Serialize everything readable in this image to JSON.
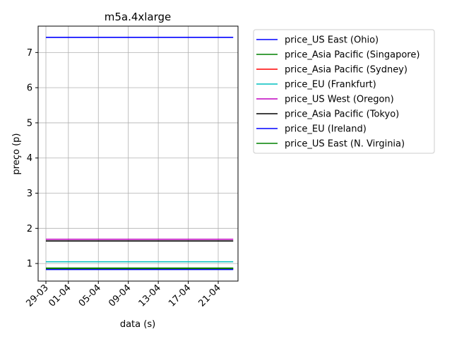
{
  "chart_data": {
    "type": "line",
    "title": "m5a.4xlarge",
    "xlabel": "data (s)",
    "ylabel": "preço (p)",
    "x_tick_labels": [
      "29-03",
      "01-04",
      "05-04",
      "09-04",
      "13-04",
      "17-04",
      "21-04"
    ],
    "x_tick_days": [
      0,
      3,
      7,
      11,
      15,
      19,
      23
    ],
    "x_range_days": [
      0,
      25
    ],
    "ylim": [
      0.5,
      7.75
    ],
    "y_ticks": [
      1,
      2,
      3,
      4,
      5,
      6,
      7
    ],
    "grid": true,
    "legend_position": "outside-right",
    "series": [
      {
        "name": "price_US East (Ohio)",
        "color": "#0000ff",
        "value": 7.43
      },
      {
        "name": "price_Asia Pacific (Singapore)",
        "color": "#008000",
        "value": 0.87
      },
      {
        "name": "price_Asia Pacific (Sydney)",
        "color": "#ff0000",
        "value": 0.85
      },
      {
        "name": "price_EU (Frankfurt)",
        "color": "#00bfbf",
        "value": 1.05
      },
      {
        "name": "price_US West (Oregon)",
        "color": "#bf00bf",
        "value": 1.69
      },
      {
        "name": "price_Asia Pacific (Tokyo)",
        "color": "#000000",
        "value": 1.64
      },
      {
        "name": "price_EU (Ireland)",
        "color": "#0000ff",
        "value": 0.83
      },
      {
        "name": "price_US East (N. Virginia)",
        "color": "#008000",
        "value": 0.86
      }
    ]
  }
}
